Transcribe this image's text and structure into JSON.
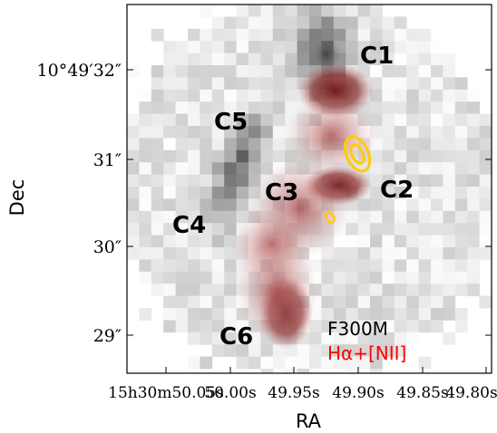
{
  "figure": {
    "axis_x": {
      "label": "RA",
      "ticks": [
        "15h30m50.05s",
        "50.00s",
        "49.95s",
        "49.90s",
        "49.85s",
        "49.80s"
      ]
    },
    "axis_y": {
      "label": "Dec",
      "ticks": [
        "10°49′32″",
        "31″",
        "30″",
        "29″"
      ]
    },
    "clumps": [
      "C1",
      "C2",
      "C3",
      "C4",
      "C5",
      "C6"
    ],
    "legend": {
      "filter": "F300M",
      "line": "Hα+[NII]"
    },
    "colors": {
      "halpha": "#ff0000",
      "contour": "#ffcc00",
      "text": "#000000"
    }
  }
}
